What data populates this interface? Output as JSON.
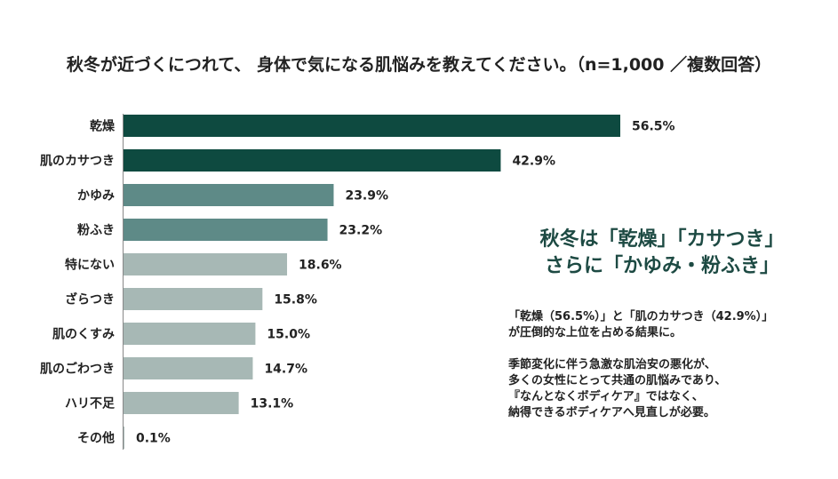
{
  "chart_data": {
    "type": "bar",
    "orientation": "horizontal",
    "title": "秋冬が近づくにつれて、 身体で気になる肌悩みを教えてください。（n=1,000 ／複数回答）",
    "categories": [
      "乾燥",
      "肌のカサつき",
      "かゆみ",
      "粉ふき",
      "特にない",
      "ざらつき",
      "肌のくすみ",
      "肌のごわつき",
      "ハリ不足",
      "その他"
    ],
    "values": [
      56.5,
      42.9,
      23.9,
      23.2,
      18.6,
      15.8,
      15.0,
      14.7,
      13.1,
      0.1
    ],
    "value_labels": [
      "56.5%",
      "42.9%",
      "23.9%",
      "23.2%",
      "18.6%",
      "15.8%",
      "15.0%",
      "14.7%",
      "13.1%",
      "0.1%"
    ],
    "xlim": [
      0,
      100
    ],
    "grid": false,
    "bar_colors": [
      "#0e4a40",
      "#0e4a40",
      "#5e8a87",
      "#5e8a87",
      "#a7b8b5",
      "#a7b8b5",
      "#a7b8b5",
      "#a7b8b5",
      "#a7b8b5",
      "#a7b8b5"
    ]
  },
  "annotation": {
    "headline_lines": [
      "秋冬は「乾燥」「カサつき」",
      "さらに「かゆみ・粉ふき」"
    ],
    "paragraph1": [
      "「乾燥（56.5%）」と「肌のカサつき（42.9%）」",
      "が圧倒的な上位を占める結果に。"
    ],
    "paragraph2": [
      "季節変化に伴う急激な肌治安の悪化が、",
      "多くの女性にとって共通の肌悩みであり、",
      "『なんとなくボディケア』ではなく、",
      "納得できるボディケアへ見直しが必要。"
    ]
  }
}
